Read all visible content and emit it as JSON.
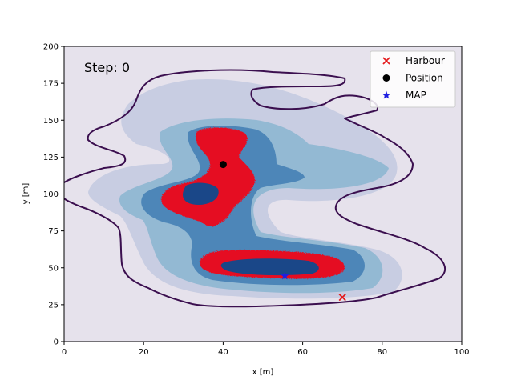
{
  "chart_data": {
    "type": "scatter",
    "title": "",
    "xlabel": "x [m]",
    "ylabel": "y [m]",
    "xlim": [
      0,
      100
    ],
    "ylim": [
      0,
      200
    ],
    "x_ticks": [
      "0",
      "20",
      "40",
      "60",
      "80",
      "100"
    ],
    "y_ticks": [
      "0",
      "25",
      "50",
      "75",
      "100",
      "125",
      "150",
      "175",
      "200"
    ],
    "annotation": "Step: 0",
    "background_color": "#e6e2ec",
    "legend_position": "top-right",
    "series": [
      {
        "name": "Harbour",
        "marker": "x",
        "color": "#e41a1c",
        "x": [
          70
        ],
        "y": [
          30
        ]
      },
      {
        "name": "Position",
        "marker": "o",
        "color": "#000000",
        "x": [
          40
        ],
        "y": [
          120
        ]
      },
      {
        "name": "MAP",
        "marker": "*",
        "color": "#1f1fe0",
        "x": [
          55.5
        ],
        "y": [
          44.5
        ]
      }
    ],
    "density_levels": {
      "colors": [
        "#c8cde2",
        "#93b9d3",
        "#4d86b8",
        "#1a4788"
      ],
      "high_density_color": "#e50c22",
      "boundary_color": "#3b0f4f"
    }
  }
}
